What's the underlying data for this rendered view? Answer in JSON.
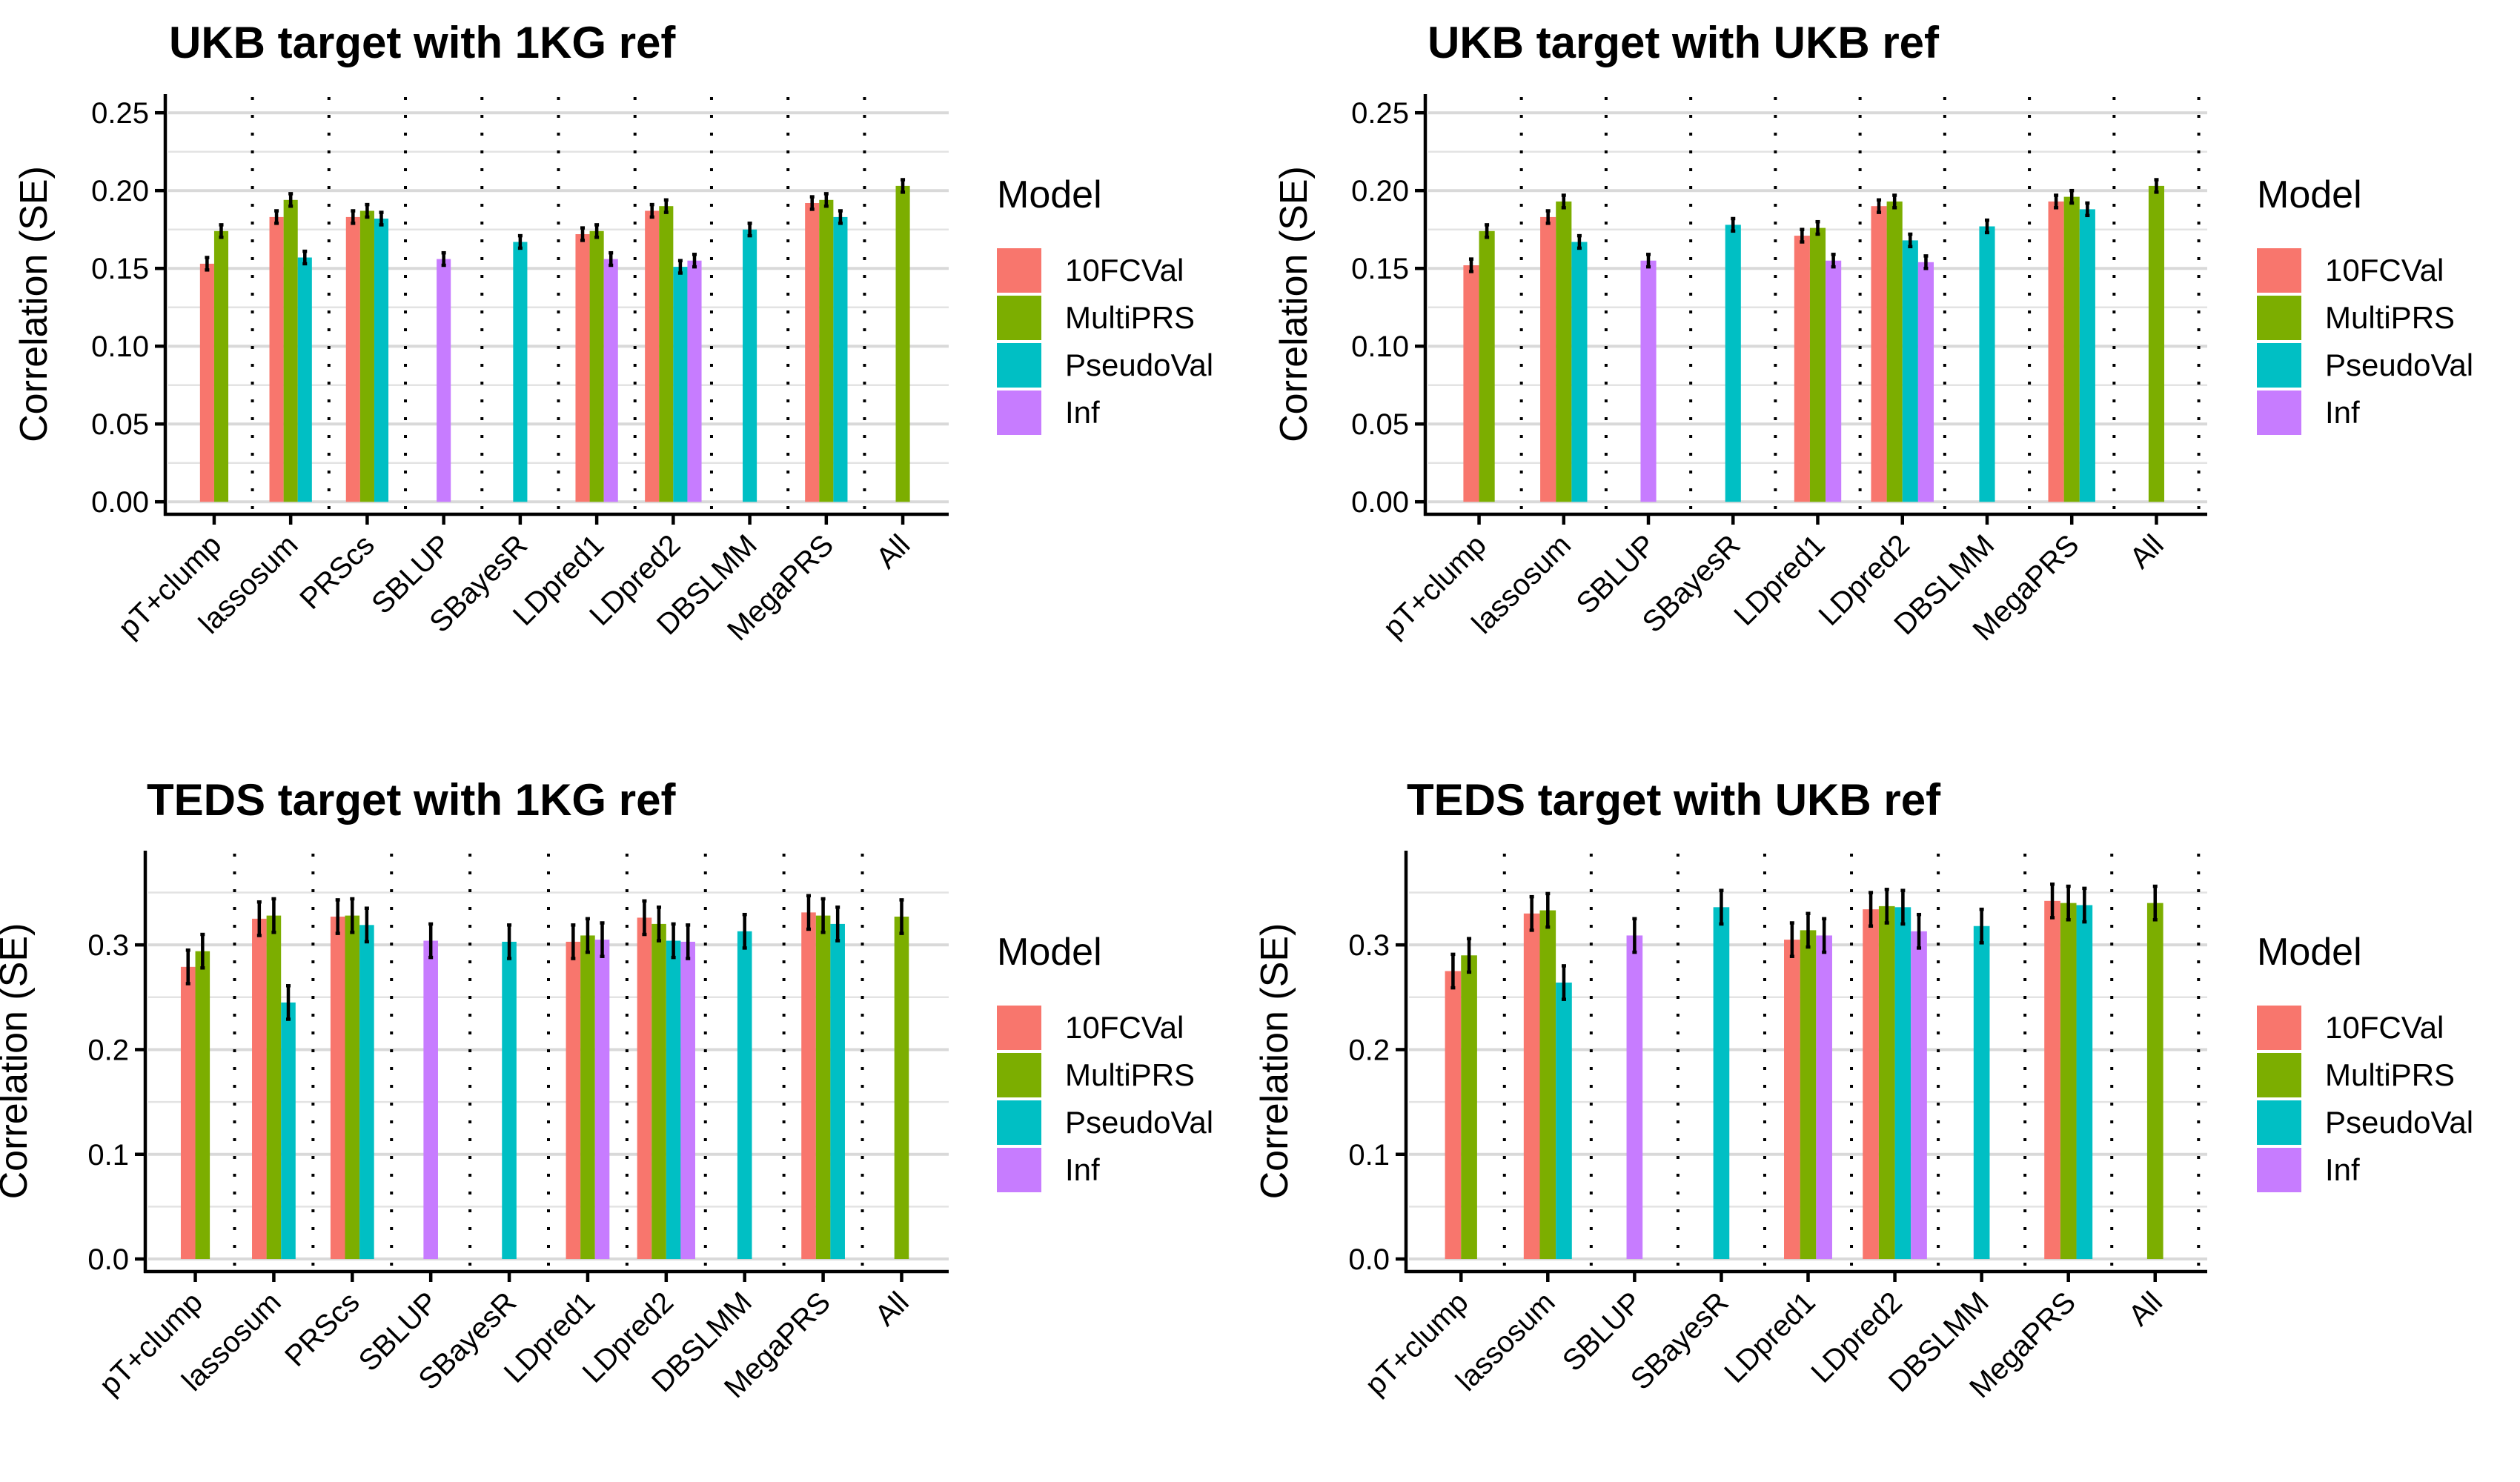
{
  "figure": {
    "legend": {
      "title": "Model",
      "entries": [
        {
          "label": "10FCVal",
          "color": "#F8766D"
        },
        {
          "label": "MultiPRS",
          "color": "#7CAE00"
        },
        {
          "label": "PseudoVal",
          "color": "#00BFC4"
        },
        {
          "label": "Inf",
          "color": "#C77CFF"
        }
      ]
    }
  },
  "chart_data": [
    {
      "type": "bar",
      "title": "UKB target with 1KG ref",
      "xlabel": "",
      "ylabel": "Correlation (SE)",
      "ylim": [
        -0.008,
        0.262
      ],
      "yticks": [
        0.0,
        0.05,
        0.1,
        0.15,
        0.2,
        0.25
      ],
      "ytick_labels": [
        "0.00",
        "0.05",
        "0.10",
        "0.15",
        "0.20",
        "0.25"
      ],
      "grid": true,
      "legend_position": "right",
      "categories": [
        "pT+clump",
        "lassosum",
        "PRScs",
        "SBLUP",
        "SBayesR",
        "LDpred1",
        "LDpred2",
        "DBSLMM",
        "MegaPRS",
        "All"
      ],
      "series": [
        {
          "name": "10FCVal",
          "values": [
            0.153,
            0.183,
            0.183,
            null,
            null,
            0.172,
            0.187,
            null,
            0.192,
            null
          ]
        },
        {
          "name": "MultiPRS",
          "values": [
            0.174,
            0.194,
            0.187,
            null,
            null,
            0.174,
            0.19,
            null,
            0.194,
            0.203
          ]
        },
        {
          "name": "PseudoVal",
          "values": [
            null,
            0.157,
            0.182,
            null,
            0.167,
            null,
            0.151,
            0.175,
            0.183,
            null
          ]
        },
        {
          "name": "Inf",
          "values": [
            null,
            null,
            null,
            0.156,
            null,
            0.156,
            0.155,
            null,
            null,
            null
          ]
        }
      ],
      "error_bar_se": 0.004
    },
    {
      "type": "bar",
      "title": "UKB target with UKB ref",
      "xlabel": "",
      "ylabel": "Correlation (SE)",
      "ylim": [
        -0.008,
        0.262
      ],
      "yticks": [
        0.0,
        0.05,
        0.1,
        0.15,
        0.2,
        0.25
      ],
      "ytick_labels": [
        "0.00",
        "0.05",
        "0.10",
        "0.15",
        "0.20",
        "0.25"
      ],
      "grid": true,
      "legend_position": "right",
      "categories": [
        "pT+clump",
        "lassosum",
        "SBLUP",
        "SBayesR",
        "LDpred1",
        "LDpred2",
        "DBSLMM",
        "MegaPRS",
        "All"
      ],
      "series": [
        {
          "name": "10FCVal",
          "values": [
            0.152,
            0.183,
            null,
            null,
            0.171,
            0.19,
            null,
            0.193,
            null
          ]
        },
        {
          "name": "MultiPRS",
          "values": [
            0.174,
            0.193,
            null,
            null,
            0.176,
            0.193,
            null,
            0.196,
            0.203
          ]
        },
        {
          "name": "PseudoVal",
          "values": [
            null,
            0.167,
            null,
            0.178,
            null,
            0.168,
            0.177,
            0.188,
            null
          ]
        },
        {
          "name": "Inf",
          "values": [
            null,
            null,
            0.155,
            null,
            0.155,
            0.154,
            null,
            null,
            null
          ]
        }
      ],
      "error_bar_se": 0.004
    },
    {
      "type": "bar",
      "title": "TEDS target with 1KG ref",
      "xlabel": "",
      "ylabel": "Correlation (SE)",
      "ylim": [
        -0.012,
        0.39
      ],
      "yticks": [
        0.0,
        0.1,
        0.2,
        0.3
      ],
      "ytick_labels": [
        "0.0",
        "0.1",
        "0.2",
        "0.3"
      ],
      "grid": true,
      "legend_position": "right",
      "categories": [
        "pT+clump",
        "lassosum",
        "PRScs",
        "SBLUP",
        "SBayesR",
        "LDpred1",
        "LDpred2",
        "DBSLMM",
        "MegaPRS",
        "All"
      ],
      "series": [
        {
          "name": "10FCVal",
          "values": [
            0.279,
            0.325,
            0.327,
            null,
            null,
            0.303,
            0.326,
            null,
            0.331,
            null
          ]
        },
        {
          "name": "MultiPRS",
          "values": [
            0.294,
            0.328,
            0.328,
            null,
            null,
            0.309,
            0.32,
            null,
            0.328,
            0.327
          ]
        },
        {
          "name": "PseudoVal",
          "values": [
            null,
            0.245,
            0.319,
            null,
            0.303,
            null,
            0.304,
            0.313,
            0.32,
            null
          ]
        },
        {
          "name": "Inf",
          "values": [
            null,
            null,
            null,
            0.304,
            null,
            0.305,
            0.303,
            null,
            null,
            null
          ]
        }
      ],
      "error_bar_se": 0.016
    },
    {
      "type": "bar",
      "title": "TEDS target with UKB ref",
      "xlabel": "",
      "ylabel": "Correlation (SE)",
      "ylim": [
        -0.012,
        0.39
      ],
      "yticks": [
        0.0,
        0.1,
        0.2,
        0.3
      ],
      "ytick_labels": [
        "0.0",
        "0.1",
        "0.2",
        "0.3"
      ],
      "grid": true,
      "legend_position": "right",
      "categories": [
        "pT+clump",
        "lassosum",
        "SBLUP",
        "SBayesR",
        "LDpred1",
        "LDpred2",
        "DBSLMM",
        "MegaPRS",
        "All"
      ],
      "series": [
        {
          "name": "10FCVal",
          "values": [
            0.275,
            0.33,
            null,
            null,
            0.305,
            0.334,
            null,
            0.342,
            null
          ]
        },
        {
          "name": "MultiPRS",
          "values": [
            0.29,
            0.333,
            null,
            null,
            0.314,
            0.337,
            null,
            0.34,
            0.34
          ]
        },
        {
          "name": "PseudoVal",
          "values": [
            null,
            0.264,
            null,
            0.336,
            null,
            0.336,
            0.318,
            0.338,
            null
          ]
        },
        {
          "name": "Inf",
          "values": [
            null,
            null,
            0.309,
            null,
            0.309,
            0.313,
            null,
            null,
            null
          ]
        }
      ],
      "error_bar_se": 0.016
    }
  ]
}
